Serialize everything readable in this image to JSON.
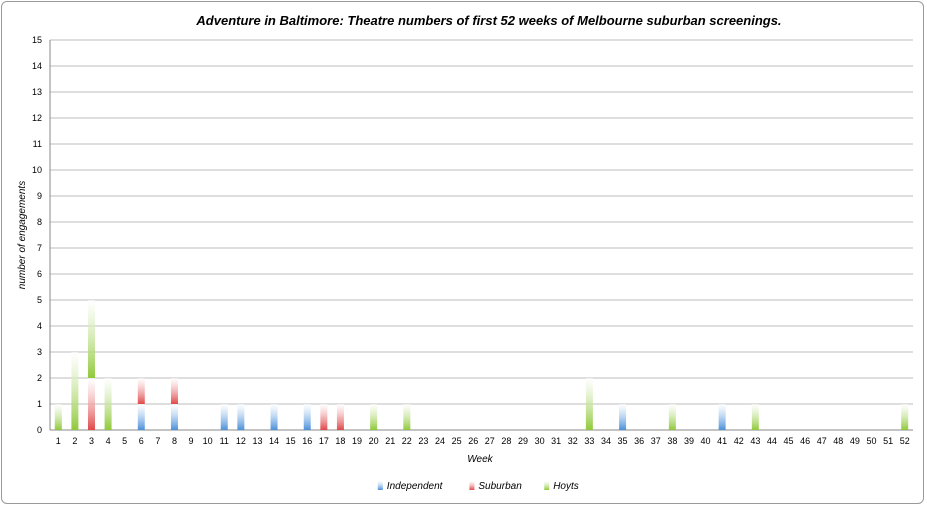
{
  "chart_data": {
    "type": "bar",
    "stacked": true,
    "title": "Adventure in Baltimore: Theatre numbers of first 52 weeks of Melbourne suburban screenings.",
    "xlabel": "Week",
    "ylabel": "number of engagements",
    "ylim": [
      0,
      15
    ],
    "yticks": [
      "0",
      "1",
      "2",
      "3",
      "4",
      "5",
      "6",
      "7",
      "8",
      "9",
      "10",
      "11",
      "12",
      "13",
      "14",
      "15"
    ],
    "grid": true,
    "legend_position": "bottom",
    "categories": [
      "1",
      "2",
      "3",
      "4",
      "5",
      "6",
      "7",
      "8",
      "9",
      "10",
      "11",
      "12",
      "13",
      "14",
      "15",
      "16",
      "17",
      "18",
      "19",
      "20",
      "21",
      "22",
      "23",
      "24",
      "25",
      "26",
      "27",
      "28",
      "29",
      "30",
      "31",
      "32",
      "33",
      "34",
      "35",
      "36",
      "37",
      "38",
      "39",
      "40",
      "41",
      "42",
      "43",
      "44",
      "45",
      "46",
      "47",
      "48",
      "49",
      "50",
      "51",
      "52"
    ],
    "series": [
      {
        "name": "Independent",
        "color": "#4a90d9",
        "values": [
          0,
          0,
          0,
          0,
          0,
          1,
          0,
          1,
          0,
          0,
          1,
          1,
          0,
          1,
          0,
          1,
          0,
          0,
          0,
          0,
          0,
          0,
          0,
          0,
          0,
          0,
          0,
          0,
          0,
          0,
          0,
          0,
          0,
          0,
          1,
          0,
          0,
          0,
          0,
          0,
          1,
          0,
          0,
          0,
          0,
          0,
          0,
          0,
          0,
          0,
          0,
          0
        ]
      },
      {
        "name": "Suburban",
        "color": "#e0484a",
        "values": [
          0,
          0,
          2,
          0,
          0,
          1,
          0,
          1,
          0,
          0,
          0,
          0,
          0,
          0,
          0,
          0,
          1,
          1,
          0,
          0,
          0,
          0,
          0,
          0,
          0,
          0,
          0,
          0,
          0,
          0,
          0,
          0,
          0,
          0,
          0,
          0,
          0,
          0,
          0,
          0,
          0,
          0,
          0,
          0,
          0,
          0,
          0,
          0,
          0,
          0,
          0,
          0
        ]
      },
      {
        "name": "Hoyts",
        "color": "#8fc93a",
        "values": [
          1,
          3,
          3,
          2,
          0,
          0,
          0,
          0,
          0,
          0,
          0,
          0,
          0,
          0,
          0,
          0,
          0,
          0,
          0,
          1,
          0,
          1,
          0,
          0,
          0,
          0,
          0,
          0,
          0,
          0,
          0,
          0,
          2,
          0,
          0,
          0,
          0,
          1,
          0,
          0,
          0,
          0,
          1,
          0,
          0,
          0,
          0,
          0,
          0,
          0,
          0,
          1
        ]
      }
    ]
  }
}
